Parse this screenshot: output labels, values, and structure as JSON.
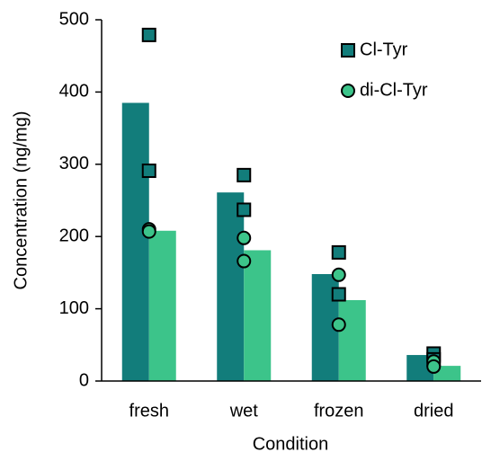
{
  "chart_data": {
    "type": "bar",
    "x_label": "Condition",
    "y_label": "Concentration (ng/mg)",
    "categories": [
      "fresh",
      "wet",
      "frozen",
      "dried"
    ],
    "series": [
      {
        "name": "Cl-Tyr",
        "color": "#127d7b",
        "marker": "square",
        "values": [
          385,
          261,
          148,
          36
        ],
        "points": [
          [
            479,
            291
          ],
          [
            285,
            237
          ],
          [
            178,
            120
          ],
          [
            38,
            30
          ]
        ]
      },
      {
        "name": "di-Cl-Tyr",
        "color": "#3cc48a",
        "marker": "circle",
        "values": [
          208,
          181,
          112,
          21
        ],
        "points": [
          [
            210,
            207
          ],
          [
            198,
            166
          ],
          [
            147,
            78
          ],
          [
            27,
            20
          ]
        ]
      }
    ],
    "ylim": [
      0,
      500
    ],
    "yticks": [
      0,
      100,
      200,
      300,
      400,
      500
    ],
    "legend": "top-right"
  }
}
